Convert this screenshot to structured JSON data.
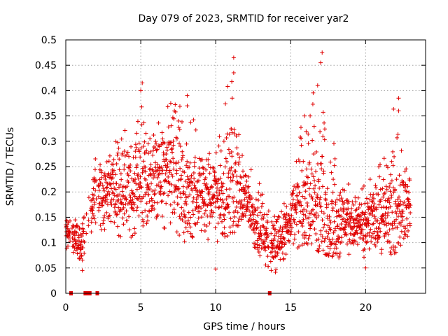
{
  "chart_data": {
    "type": "scatter",
    "title": "Day 079 of 2023, SRMTID for receiver yar2",
    "xlabel": "GPS time / hours",
    "ylabel": "SRMTID / TECUs",
    "xlim": [
      0,
      24
    ],
    "ylim": [
      0,
      0.5
    ],
    "grid": true,
    "marker": "+",
    "color": "#e00000",
    "x_ticks": [
      "0",
      "5",
      "10",
      "15",
      "20"
    ],
    "y_ticks": [
      "0",
      "0.05",
      "0.1",
      "0.15",
      "0.2",
      "0.25",
      "0.3",
      "0.35",
      "0.4",
      "0.45",
      "0.5"
    ],
    "data_gaps_hours": [
      0.35,
      1.3,
      1.45,
      1.6,
      2.1,
      13.6
    ],
    "envelope": {
      "description": "approximate per-hour level of the scatter cloud (center, low, high)",
      "hours": [
        0,
        1,
        2,
        3,
        4,
        5,
        6,
        7,
        8,
        9,
        10,
        11,
        12,
        13,
        14,
        15,
        16,
        17,
        18,
        19,
        20,
        21,
        22,
        23
      ],
      "center": [
        0.12,
        0.1,
        0.2,
        0.21,
        0.2,
        0.21,
        0.23,
        0.23,
        0.19,
        0.2,
        0.19,
        0.22,
        0.19,
        0.12,
        0.1,
        0.15,
        0.19,
        0.17,
        0.14,
        0.14,
        0.13,
        0.15,
        0.17,
        0.17
      ],
      "low": [
        0.07,
        0.05,
        0.12,
        0.13,
        0.1,
        0.13,
        0.15,
        0.11,
        0.1,
        0.1,
        0.09,
        0.12,
        0.12,
        0.06,
        0.04,
        0.08,
        0.1,
        0.08,
        0.07,
        0.07,
        0.06,
        0.07,
        0.08,
        0.1
      ],
      "high": [
        0.17,
        0.14,
        0.28,
        0.3,
        0.33,
        0.41,
        0.35,
        0.38,
        0.39,
        0.3,
        0.28,
        0.46,
        0.26,
        0.22,
        0.16,
        0.21,
        0.41,
        0.47,
        0.28,
        0.22,
        0.22,
        0.26,
        0.38,
        0.26
      ]
    },
    "peaks": [
      {
        "x": 5.1,
        "y": 0.415
      },
      {
        "x": 5.0,
        "y": 0.4
      },
      {
        "x": 7.0,
        "y": 0.375
      },
      {
        "x": 8.1,
        "y": 0.39
      },
      {
        "x": 8.1,
        "y": 0.37
      },
      {
        "x": 11.2,
        "y": 0.465
      },
      {
        "x": 11.2,
        "y": 0.435
      },
      {
        "x": 11.1,
        "y": 0.385
      },
      {
        "x": 17.1,
        "y": 0.475
      },
      {
        "x": 16.8,
        "y": 0.41
      },
      {
        "x": 17.0,
        "y": 0.455
      },
      {
        "x": 22.2,
        "y": 0.385
      },
      {
        "x": 22.2,
        "y": 0.36
      },
      {
        "x": 16.3,
        "y": 0.35
      },
      {
        "x": 13.7,
        "y": 0.045
      },
      {
        "x": 1.1,
        "y": 0.045
      },
      {
        "x": 20.0,
        "y": 0.05
      },
      {
        "x": 10.0,
        "y": 0.048
      }
    ]
  }
}
